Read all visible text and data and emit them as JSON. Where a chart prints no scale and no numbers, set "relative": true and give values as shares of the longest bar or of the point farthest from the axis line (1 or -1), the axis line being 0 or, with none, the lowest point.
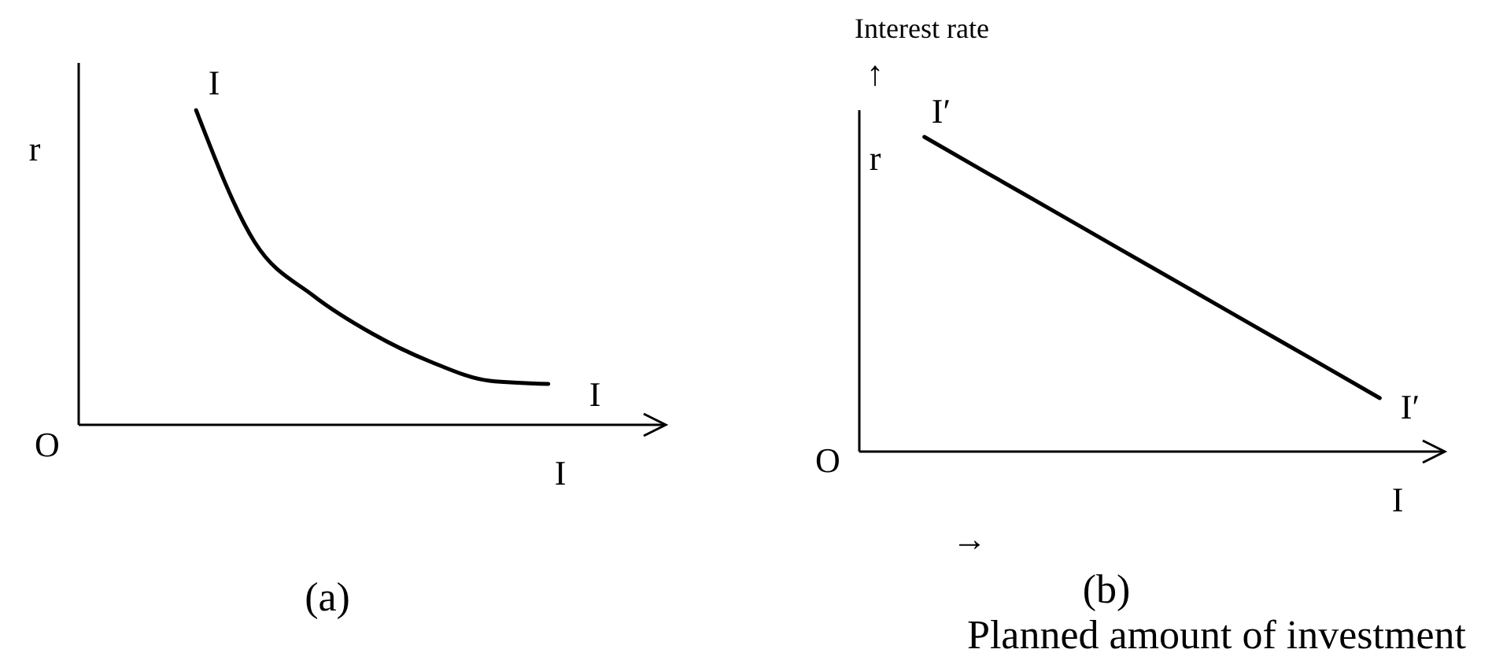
{
  "chart_data": [
    {
      "type": "line",
      "title": "(a)",
      "xlabel": "I",
      "ylabel": "r",
      "relative": true,
      "categories": [
        null,
        null,
        null,
        null,
        null,
        null,
        null,
        null,
        null,
        null,
        null
      ],
      "annotations": [
        "O"
      ],
      "series": [
        {
          "name": "I",
          "color": "#000000",
          "values": [
            null,
            null,
            1,
            0.58,
            0.41,
            0.29,
            0.2,
            0.14,
            0.13,
            null,
            null
          ]
        }
      ]
    },
    {
      "type": "line",
      "title": "(b)",
      "xlabel": "I",
      "ylabel": "r",
      "relative": true,
      "categories": [
        null,
        null,
        null,
        null,
        null,
        null,
        null,
        null,
        null,
        null
      ],
      "annotations": [
        "O",
        "Interest rate",
        "↑",
        "→",
        "Planned amount of investment"
      ],
      "series": [
        {
          "name": "I′",
          "color": "#000000",
          "values": [
            null,
            1,
            0.881,
            0.763,
            0.644,
            0.526,
            0.407,
            0.289,
            0.17,
            null
          ]
        }
      ]
    }
  ]
}
